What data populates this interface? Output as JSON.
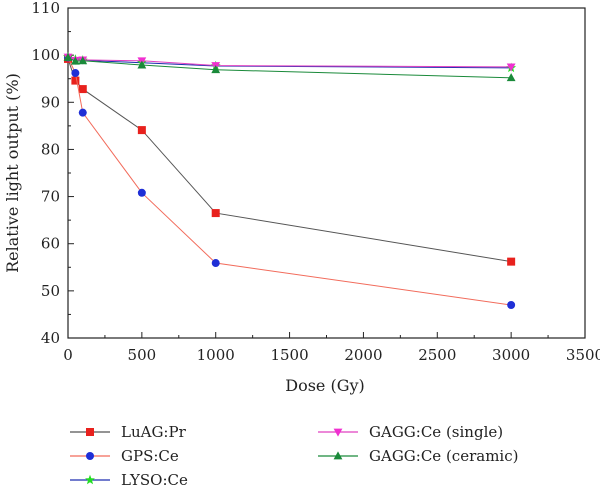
{
  "chart_data": {
    "type": "line",
    "xlabel": "Dose (Gy)",
    "ylabel": "Relative light output (%)",
    "xlim": [
      0,
      3500
    ],
    "ylim": [
      40,
      110
    ],
    "xticks": [
      0,
      500,
      1000,
      1500,
      2000,
      2500,
      3000,
      3500
    ],
    "yticks": [
      40,
      50,
      60,
      70,
      80,
      90,
      100,
      110
    ],
    "grid": false,
    "legend_position": "bottom",
    "series": [
      {
        "name": "LuAG:Pr",
        "marker": "square",
        "line_color": "#555555",
        "marker_color": "#e8211d",
        "x": [
          0,
          50,
          100,
          500,
          1000,
          3000
        ],
        "y": [
          99.2,
          94.6,
          92.8,
          84.1,
          66.5,
          56.2
        ]
      },
      {
        "name": "GPS:Ce",
        "marker": "circle",
        "line_color": "#f26b5b",
        "marker_color": "#1f2fd6",
        "x": [
          0,
          50,
          100,
          500,
          1000,
          3000
        ],
        "y": [
          99.5,
          96.2,
          87.8,
          70.8,
          55.9,
          47.0
        ]
      },
      {
        "name": "LYSO:Ce",
        "marker": "star",
        "line_color": "#1d2fb0",
        "marker_color": "#22dd22",
        "x": [
          0,
          50,
          100,
          500,
          1000,
          3000
        ],
        "y": [
          99.6,
          99.1,
          98.9,
          98.4,
          97.7,
          97.3
        ]
      },
      {
        "name": "GAGG:Ce (single)",
        "marker": "triangle-down",
        "line_color": "#e040c0",
        "marker_color": "#f030d0",
        "x": [
          0,
          50,
          100,
          500,
          1000,
          3000
        ],
        "y": [
          99.6,
          98.9,
          99.0,
          98.8,
          97.8,
          97.5
        ]
      },
      {
        "name": "GAGG:Ce (ceramic)",
        "marker": "triangle-up",
        "line_color": "#1a8a3a",
        "marker_color": "#1a8a3a",
        "x": [
          0,
          50,
          100,
          500,
          1000,
          3000
        ],
        "y": [
          99.5,
          98.7,
          98.8,
          97.9,
          96.9,
          95.2
        ]
      }
    ]
  }
}
